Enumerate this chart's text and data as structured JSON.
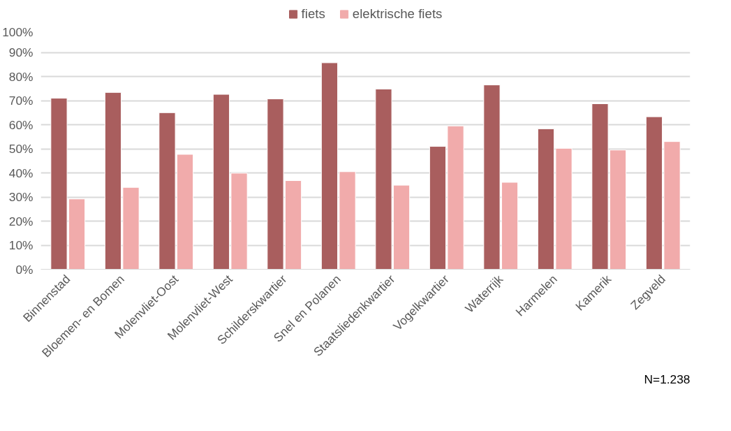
{
  "chart_data": {
    "type": "bar",
    "categories": [
      "Binnenstad",
      "Bloemen- en Bomen",
      "Molenvliet-Oost",
      "Molenvliet-West",
      "Schilderskwartier",
      "Snel en Polanen",
      "Staatsliedenkwartier",
      "Vogelkwartier",
      "Waterrijk",
      "Harmelen",
      "Kamerik",
      "Zegveld"
    ],
    "series": [
      {
        "name": "fiets",
        "color": "#a95e5e",
        "values": [
          71,
          73.4,
          65,
          72.6,
          70.7,
          85.7,
          74.8,
          51,
          76.5,
          58.3,
          68.7,
          63.3
        ]
      },
      {
        "name": "elektrische fiets",
        "color": "#f1abab",
        "values": [
          29.2,
          34,
          47.7,
          39.9,
          36.8,
          40.5,
          34.9,
          59.5,
          36.1,
          50.2,
          49.5,
          53
        ]
      }
    ],
    "ylim": [
      0,
      100
    ],
    "yticks": [
      {
        "value": 0,
        "label": "0%"
      },
      {
        "value": 10,
        "label": "10%"
      },
      {
        "value": 20,
        "label": "20%"
      },
      {
        "value": 30,
        "label": "30%"
      },
      {
        "value": 40,
        "label": "40%"
      },
      {
        "value": 50,
        "label": "50%"
      },
      {
        "value": 60,
        "label": "60%"
      },
      {
        "value": 70,
        "label": "70%"
      },
      {
        "value": 80,
        "label": "80%"
      },
      {
        "value": 90,
        "label": "90%"
      },
      {
        "value": 100,
        "label": "100%"
      }
    ],
    "grid": "y",
    "legend": "top",
    "annotations": [
      "N=1.238"
    ]
  }
}
